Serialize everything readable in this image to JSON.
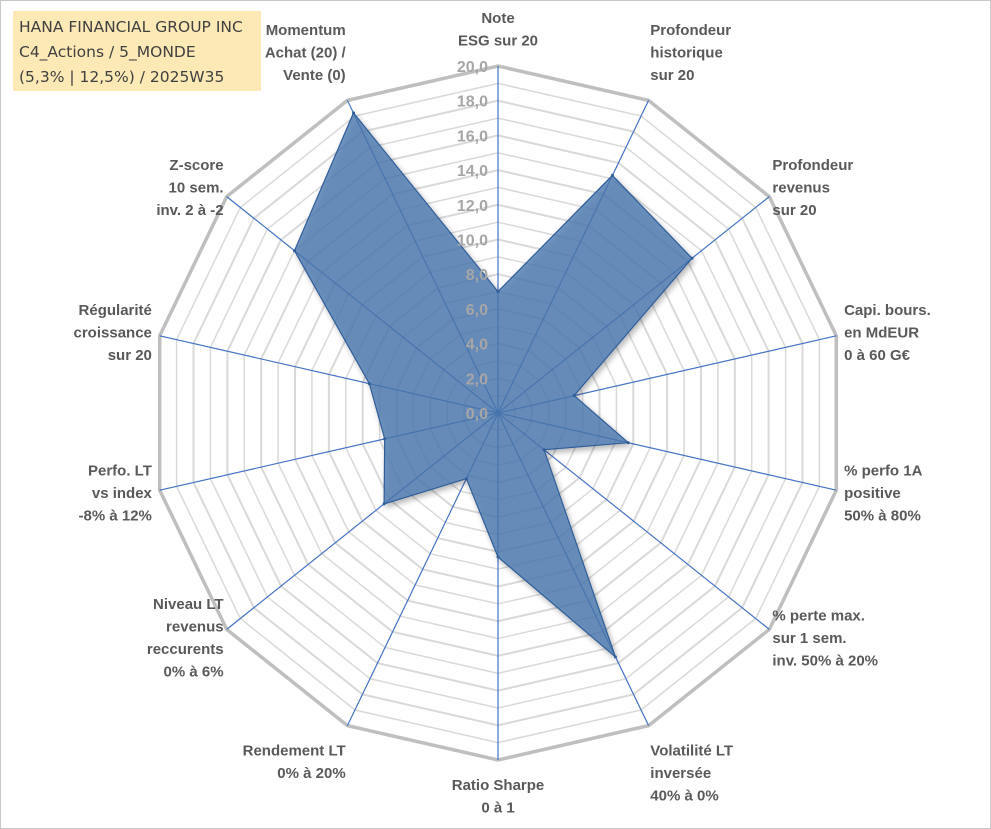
{
  "title": {
    "line1": "HANA FINANCIAL GROUP INC",
    "line2": "C4_Actions / 5_MONDE",
    "line3": "(5,3% | 12,5%) / 2025W35"
  },
  "chart_data": {
    "type": "radar",
    "range": [
      0,
      20
    ],
    "tick_step": 2,
    "ticks": [
      "0,0",
      "2,0",
      "4,0",
      "6,0",
      "8,0",
      "10,0",
      "12,0",
      "14,0",
      "16,0",
      "18,0",
      "20,0"
    ],
    "axes": [
      {
        "label": [
          "Note",
          "ESG sur 20"
        ],
        "value": 7.0
      },
      {
        "label": [
          "Profondeur",
          "historique",
          "sur 20"
        ],
        "value": 15.2
      },
      {
        "label": [
          "Profondeur",
          "revenus",
          "sur 20"
        ],
        "value": 14.3
      },
      {
        "label": [
          "Capi. bours.",
          "en MdEUR",
          "0 à 60 G€"
        ],
        "value": 4.5
      },
      {
        "label": [
          "% perfo 1A",
          "positive",
          "50% à 80%"
        ],
        "value": 7.7
      },
      {
        "label": [
          "% perte max.",
          "sur 1 sem.",
          "inv. 50% à 20%"
        ],
        "value": 3.4
      },
      {
        "label": [
          "Volatilité LT",
          "inversée",
          "40% à 0%"
        ],
        "value": 15.6
      },
      {
        "label": [
          "Ratio Sharpe",
          "0 à 1"
        ],
        "value": 8.3
      },
      {
        "label": [
          "Rendement LT",
          "0% à 20%"
        ],
        "value": 4.2
      },
      {
        "label": [
          "Niveau LT",
          "revenus",
          "reccurents",
          "0% à 6%"
        ],
        "value": 8.4
      },
      {
        "label": [
          "Perfo. LT",
          "vs index",
          "-8% à 12%"
        ],
        "value": 6.7
      },
      {
        "label": [
          "Régularité",
          "croissance",
          "sur 20"
        ],
        "value": 7.6
      },
      {
        "label": [
          "Z-score",
          "10 sem.",
          "inv. 2 à -2"
        ],
        "value": 15.0
      },
      {
        "label": [
          "Momentum",
          "Achat (20) /",
          "Vente (0)"
        ],
        "value": 19.2
      }
    ],
    "colors": {
      "fill": "#4a78b0",
      "stroke": "#2f5d99",
      "spoke": "#4472c4",
      "outer_grid": "#bfbfbf",
      "inner_grid": "#d9d9d9",
      "tick_label": "#a6a6a6",
      "axis_label": "#595959",
      "title_bg": "#fde9b6"
    }
  }
}
